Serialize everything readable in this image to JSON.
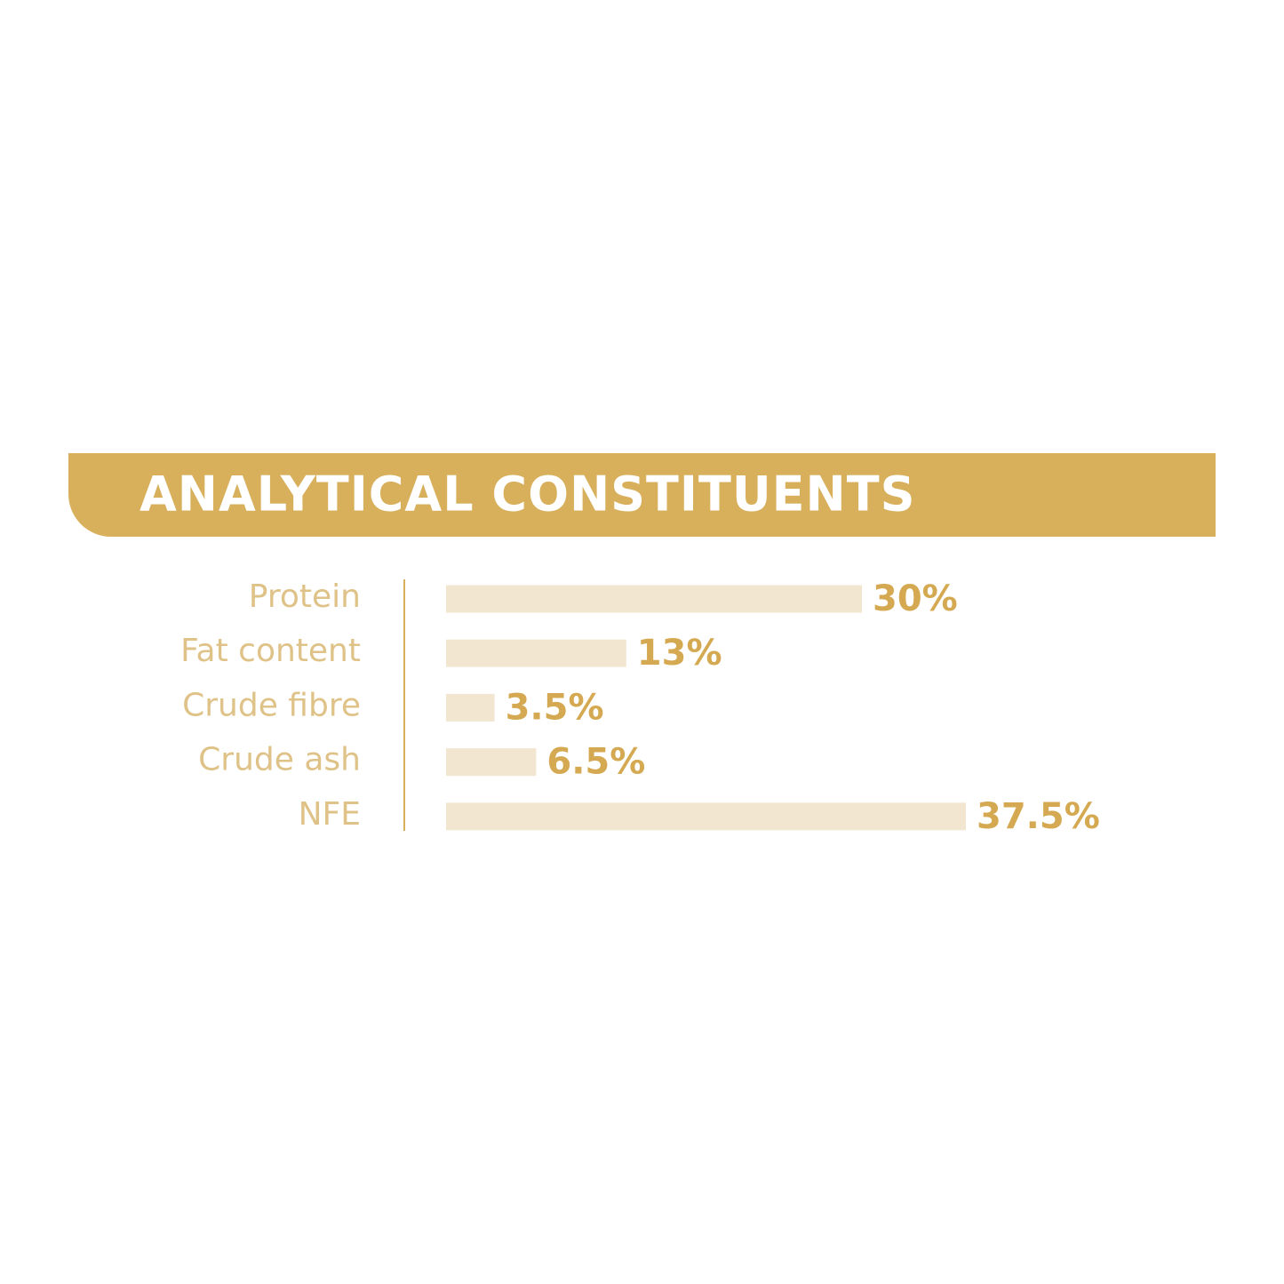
{
  "chart_data": {
    "type": "bar",
    "orientation": "horizontal",
    "title": "ANALYTICAL CONSTITUENTS",
    "categories": [
      "Protein",
      "Fat content",
      "Crude fibre",
      "Crude ash",
      "NFE"
    ],
    "values": [
      30,
      13,
      3.5,
      6.5,
      37.5
    ],
    "value_labels": [
      "30%",
      "13%",
      "3.5%",
      "6.5%",
      "37.5%"
    ],
    "color": "#f2e6d1",
    "header_color": "#d8b05c",
    "label_color": "#dfc287",
    "value_label_color": "#d4a951"
  }
}
